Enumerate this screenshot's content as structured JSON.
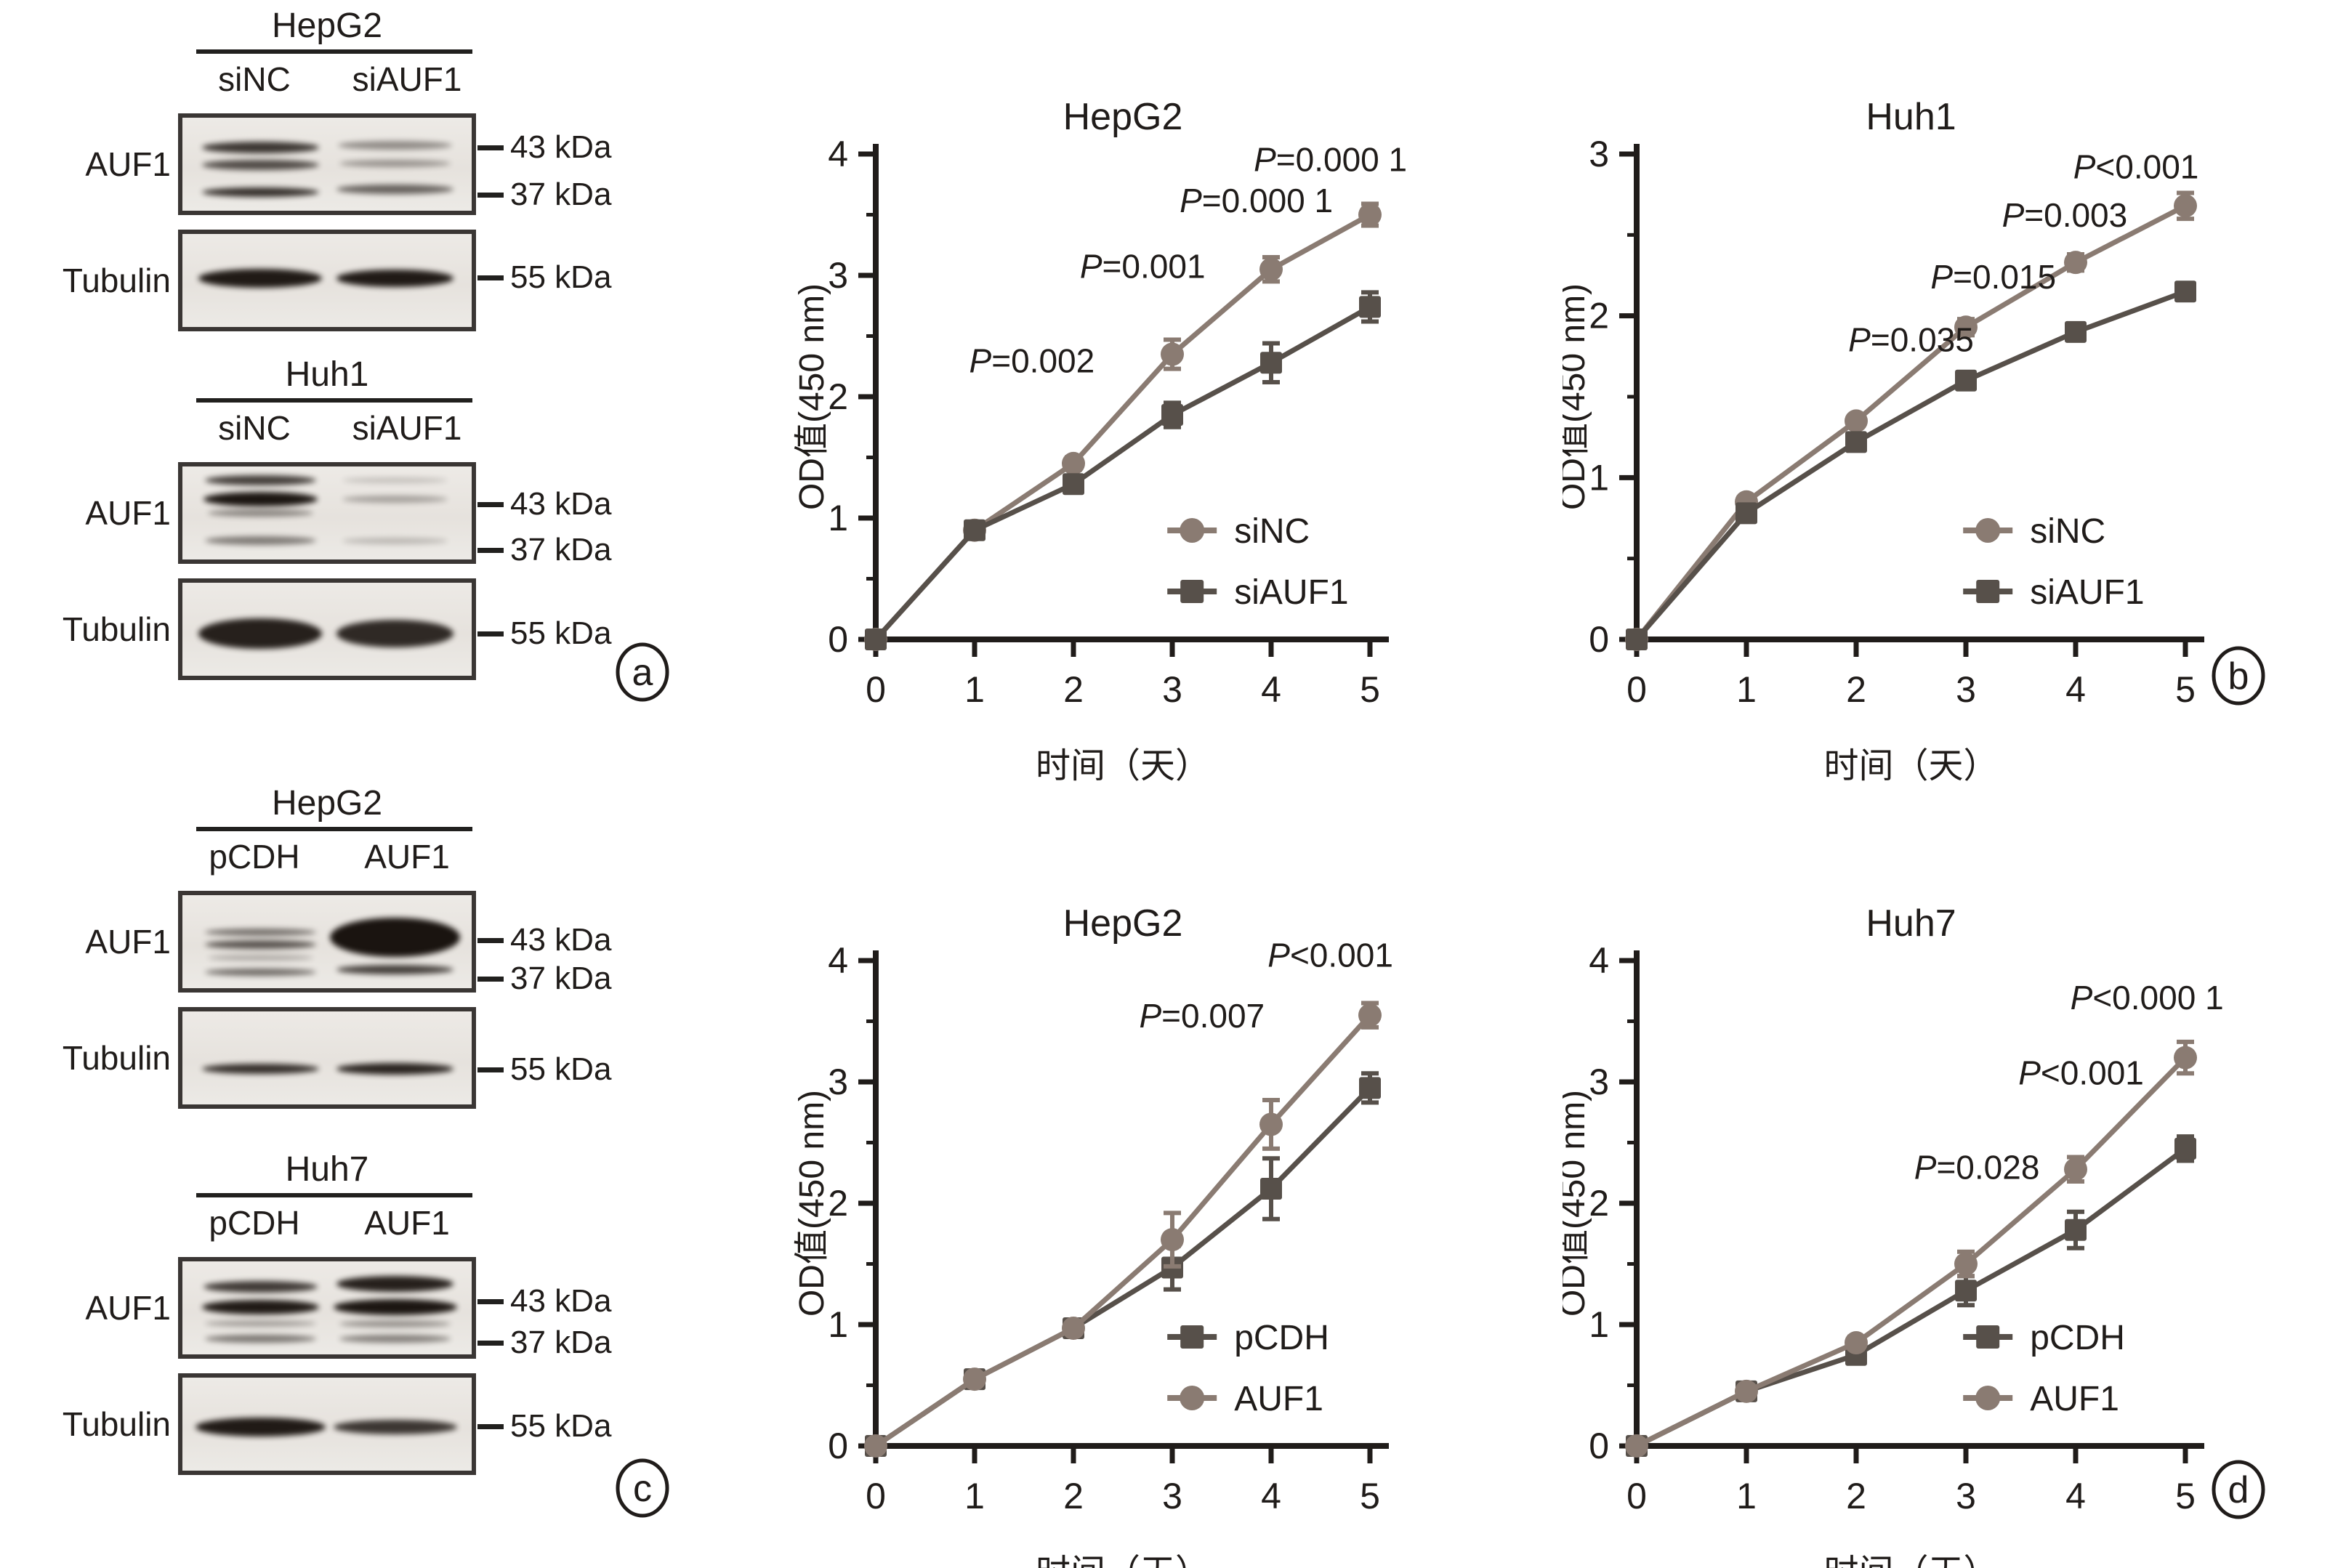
{
  "panel_letters": [
    "a",
    "b",
    "c",
    "d"
  ],
  "wb_groups": [
    {
      "id": "a-hepg2",
      "cell_line": "HepG2",
      "lane_labels": [
        "siNC",
        "siAUF1"
      ],
      "rows": [
        {
          "protein": "AUF1",
          "markers": [
            {
              "label": "43 kDa",
              "pos": 0.34
            },
            {
              "label": "37 kDa",
              "pos": 0.81
            }
          ],
          "bands": [
            [
              {
                "y": 0.32,
                "w": 0.95,
                "h": 16,
                "d": 0.82
              },
              {
                "y": 0.51,
                "w": 0.95,
                "h": 14,
                "d": 0.72
              },
              {
                "y": 0.8,
                "w": 0.95,
                "h": 13,
                "d": 0.85
              }
            ],
            [
              {
                "y": 0.3,
                "w": 0.92,
                "h": 12,
                "d": 0.42
              },
              {
                "y": 0.49,
                "w": 0.9,
                "h": 10,
                "d": 0.38
              },
              {
                "y": 0.77,
                "w": 0.95,
                "h": 13,
                "d": 0.62
              }
            ]
          ]
        },
        {
          "protein": "Tubulin",
          "markers": [
            {
              "label": "55 kDa",
              "pos": 0.48
            }
          ],
          "bands": [
            [
              {
                "y": 0.48,
                "w": 1.0,
                "h": 26,
                "d": 0.95
              }
            ],
            [
              {
                "y": 0.48,
                "w": 0.95,
                "h": 24,
                "d": 0.95
              }
            ]
          ]
        }
      ]
    },
    {
      "id": "a-huh1",
      "cell_line": "Huh1",
      "lane_labels": [
        "siNC",
        "siAUF1"
      ],
      "rows": [
        {
          "protein": "AUF1",
          "markers": [
            {
              "label": "43 kDa",
              "pos": 0.42
            },
            {
              "label": "37 kDa",
              "pos": 0.87
            }
          ],
          "bands": [
            [
              {
                "y": 0.15,
                "w": 0.9,
                "h": 14,
                "d": 0.78
              },
              {
                "y": 0.35,
                "w": 0.92,
                "h": 20,
                "d": 0.97
              },
              {
                "y": 0.5,
                "w": 0.85,
                "h": 10,
                "d": 0.45
              },
              {
                "y": 0.8,
                "w": 0.9,
                "h": 12,
                "d": 0.5
              }
            ],
            [
              {
                "y": 0.15,
                "w": 0.85,
                "h": 8,
                "d": 0.18
              },
              {
                "y": 0.35,
                "w": 0.85,
                "h": 10,
                "d": 0.32
              },
              {
                "y": 0.8,
                "w": 0.85,
                "h": 9,
                "d": 0.22
              }
            ]
          ]
        },
        {
          "protein": "Tubulin",
          "markers": [
            {
              "label": "55 kDa",
              "pos": 0.55
            }
          ],
          "bands": [
            [
              {
                "y": 0.55,
                "w": 1.0,
                "h": 42,
                "d": 0.92
              }
            ],
            [
              {
                "y": 0.55,
                "w": 0.95,
                "h": 38,
                "d": 0.88
              }
            ]
          ]
        }
      ]
    },
    {
      "id": "c-hepg2",
      "cell_line": "HepG2",
      "lane_labels": [
        "pCDH",
        "AUF1"
      ],
      "rows": [
        {
          "protein": "AUF1",
          "markers": [
            {
              "label": "43 kDa",
              "pos": 0.49
            },
            {
              "label": "37 kDa",
              "pos": 0.87
            }
          ],
          "bands": [
            [
              {
                "y": 0.4,
                "w": 0.9,
                "h": 10,
                "d": 0.55
              },
              {
                "y": 0.53,
                "w": 0.9,
                "h": 12,
                "d": 0.68
              },
              {
                "y": 0.67,
                "w": 0.85,
                "h": 8,
                "d": 0.28
              },
              {
                "y": 0.83,
                "w": 0.9,
                "h": 10,
                "d": 0.58
              }
            ],
            [
              {
                "y": 0.45,
                "w": 1.05,
                "h": 54,
                "d": 0.98
              },
              {
                "y": 0.8,
                "w": 0.95,
                "h": 13,
                "d": 0.78
              }
            ]
          ]
        },
        {
          "protein": "Tubulin",
          "markers": [
            {
              "label": "55 kDa",
              "pos": 0.62
            }
          ],
          "bands": [
            [
              {
                "y": 0.62,
                "w": 0.95,
                "h": 14,
                "d": 0.85
              }
            ],
            [
              {
                "y": 0.62,
                "w": 0.95,
                "h": 16,
                "d": 0.9
              }
            ]
          ]
        }
      ]
    },
    {
      "id": "c-huh7",
      "cell_line": "Huh7",
      "lane_labels": [
        "pCDH",
        "AUF1"
      ],
      "rows": [
        {
          "protein": "AUF1",
          "markers": [
            {
              "label": "43 kDa",
              "pos": 0.44
            },
            {
              "label": "37 kDa",
              "pos": 0.85
            }
          ],
          "bands": [
            [
              {
                "y": 0.27,
                "w": 0.92,
                "h": 16,
                "d": 0.8
              },
              {
                "y": 0.49,
                "w": 0.95,
                "h": 20,
                "d": 0.95
              },
              {
                "y": 0.67,
                "w": 0.9,
                "h": 9,
                "d": 0.32
              },
              {
                "y": 0.83,
                "w": 0.9,
                "h": 11,
                "d": 0.52
              }
            ],
            [
              {
                "y": 0.24,
                "w": 0.95,
                "h": 22,
                "d": 0.92
              },
              {
                "y": 0.49,
                "w": 1.0,
                "h": 22,
                "d": 0.97
              },
              {
                "y": 0.67,
                "w": 0.9,
                "h": 10,
                "d": 0.38
              },
              {
                "y": 0.83,
                "w": 0.9,
                "h": 11,
                "d": 0.48
              }
            ]
          ]
        },
        {
          "protein": "Tubulin",
          "markers": [
            {
              "label": "55 kDa",
              "pos": 0.53
            }
          ],
          "bands": [
            [
              {
                "y": 0.53,
                "w": 1.05,
                "h": 26,
                "d": 0.95
              }
            ],
            [
              {
                "y": 0.53,
                "w": 1.0,
                "h": 20,
                "d": 0.82
              }
            ]
          ]
        }
      ]
    }
  ],
  "chart_data": [
    {
      "type": "line",
      "id": "hepg2-knockdown",
      "title": "HepG2",
      "xlabel": "时间（天）",
      "ylabel": "OD值(450 nm)",
      "x": [
        0,
        1,
        2,
        3,
        4,
        5
      ],
      "xlim": [
        0,
        5
      ],
      "ylim": [
        0,
        4
      ],
      "yticks": [
        0,
        1,
        2,
        3,
        4
      ],
      "grid": false,
      "legend_position": "lower right",
      "series": [
        {
          "name": "siNC",
          "marker": "circle",
          "color": "#8a7b72",
          "values": [
            0,
            0.9,
            1.45,
            2.35,
            3.05,
            3.5
          ],
          "errors": [
            0,
            0.04,
            0.05,
            0.12,
            0.1,
            0.09
          ]
        },
        {
          "name": "siAUF1",
          "marker": "square",
          "color": "#57504a",
          "values": [
            0,
            0.9,
            1.28,
            1.85,
            2.28,
            2.74
          ],
          "errors": [
            0,
            0.04,
            0.05,
            0.1,
            0.16,
            0.12
          ]
        }
      ],
      "annotations": [
        {
          "text": "P=0.002",
          "x": 1.58,
          "y": 2.2
        },
        {
          "text": "P=0.001",
          "x": 2.7,
          "y": 2.98
        },
        {
          "text": "P=0.000 1",
          "x": 3.85,
          "y": 3.52
        },
        {
          "text": "P=0.000 1",
          "x": 4.6,
          "y": 3.86
        }
      ]
    },
    {
      "type": "line",
      "id": "huh1-knockdown",
      "title": "Huh1",
      "xlabel": "时间（天）",
      "ylabel": "OD值(450 nm)",
      "x": [
        0,
        1,
        2,
        3,
        4,
        5
      ],
      "xlim": [
        0,
        5
      ],
      "ylim": [
        0,
        3
      ],
      "yticks": [
        0,
        1,
        2,
        3
      ],
      "grid": false,
      "legend_position": "lower right",
      "series": [
        {
          "name": "siNC",
          "marker": "circle",
          "color": "#8a7b72",
          "values": [
            0,
            0.85,
            1.35,
            1.93,
            2.33,
            2.68
          ],
          "errors": [
            0,
            0,
            0,
            0.05,
            0.05,
            0.08
          ]
        },
        {
          "name": "siAUF1",
          "marker": "square",
          "color": "#57504a",
          "values": [
            0,
            0.78,
            1.22,
            1.6,
            1.9,
            2.15
          ],
          "errors": [
            0,
            0,
            0,
            0.05,
            0.05,
            0
          ]
        }
      ],
      "annotations": [
        {
          "text": "P=0.035",
          "x": 2.5,
          "y": 1.78
        },
        {
          "text": "P=0.015",
          "x": 3.25,
          "y": 2.17
        },
        {
          "text": "P=0.003",
          "x": 3.9,
          "y": 2.55
        },
        {
          "text": "P<0.001",
          "x": 4.55,
          "y": 2.85
        }
      ]
    },
    {
      "type": "line",
      "id": "hepg2-overexpression",
      "title": "HepG2",
      "xlabel": "时间（天）",
      "ylabel": "OD值(450 nm)",
      "x": [
        0,
        1,
        2,
        3,
        4,
        5
      ],
      "xlim": [
        0,
        5
      ],
      "ylim": [
        0,
        4
      ],
      "yticks": [
        0,
        1,
        2,
        3,
        4
      ],
      "grid": false,
      "legend_position": "lower right",
      "series": [
        {
          "name": "pCDH",
          "marker": "square",
          "color": "#57504a",
          "values": [
            0,
            0.55,
            0.97,
            1.47,
            2.12,
            2.95
          ],
          "errors": [
            0,
            0,
            0,
            0.18,
            0.25,
            0.12
          ]
        },
        {
          "name": "AUF1",
          "marker": "circle",
          "color": "#8a7b72",
          "values": [
            0,
            0.55,
            0.97,
            1.7,
            2.65,
            3.55
          ],
          "errors": [
            0,
            0,
            0,
            0.22,
            0.2,
            0.1
          ]
        }
      ],
      "annotations": [
        {
          "text": "P=0.007",
          "x": 3.3,
          "y": 3.45
        },
        {
          "text": "P<0.001",
          "x": 4.6,
          "y": 3.95
        }
      ]
    },
    {
      "type": "line",
      "id": "huh7-overexpression",
      "title": "Huh7",
      "xlabel": "时间（天）",
      "ylabel": "OD值(450 nm)",
      "x": [
        0,
        1,
        2,
        3,
        4,
        5
      ],
      "xlim": [
        0,
        5
      ],
      "ylim": [
        0,
        4
      ],
      "yticks": [
        0,
        1,
        2,
        3,
        4
      ],
      "grid": false,
      "legend_position": "lower right",
      "series": [
        {
          "name": "pCDH",
          "marker": "square",
          "color": "#57504a",
          "values": [
            0,
            0.45,
            0.75,
            1.28,
            1.78,
            2.45
          ],
          "errors": [
            0,
            0,
            0,
            0.12,
            0.15,
            0.1
          ]
        },
        {
          "name": "AUF1",
          "marker": "circle",
          "color": "#8a7b72",
          "values": [
            0,
            0.45,
            0.85,
            1.5,
            2.28,
            3.2
          ],
          "errors": [
            0,
            0,
            0.05,
            0.1,
            0.1,
            0.13
          ]
        }
      ],
      "annotations": [
        {
          "text": "P=0.028",
          "x": 3.1,
          "y": 2.2
        },
        {
          "text": "P<0.001",
          "x": 4.05,
          "y": 2.98
        },
        {
          "text": "P<0.000 1",
          "x": 4.65,
          "y": 3.6
        }
      ]
    }
  ]
}
